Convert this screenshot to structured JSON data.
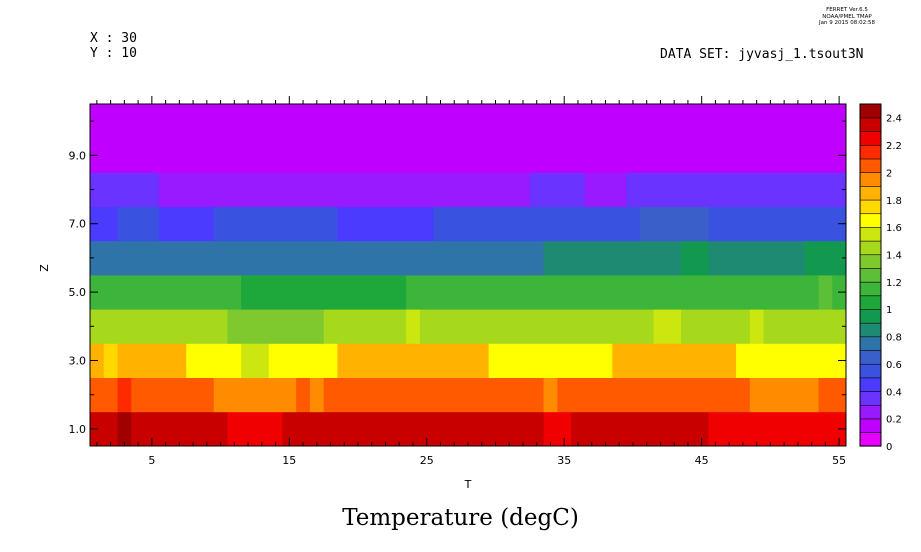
{
  "header": {
    "program": "FERRET  Ver.6.5",
    "org": "NOAA/PMEL TMAP",
    "timestamp": "Jan  9 2015 08:02:58",
    "x_coord": "X : 30",
    "y_coord": "Y : 10",
    "dataset": "DATA SET: jyvasj_1.tsout3N"
  },
  "chart_data": {
    "type": "heatmap",
    "title": "Temperature (degC)",
    "xlabel": "T",
    "ylabel": "Z",
    "xlim": [
      0.5,
      55.5
    ],
    "ylim": [
      0.5,
      10.5
    ],
    "xticks": [
      5,
      15,
      25,
      35,
      45,
      55
    ],
    "xtick_labels": [
      "5",
      "15",
      "25",
      "35",
      "45",
      "55"
    ],
    "yticks": [
      1,
      3,
      5,
      7,
      9
    ],
    "ytick_labels": [
      "1.0",
      "3.0",
      "5.0",
      "7.0",
      "9.0"
    ],
    "colorbar": {
      "levels": [
        0,
        0.1,
        0.2,
        0.3,
        0.4,
        0.5,
        0.6,
        0.7,
        0.8,
        0.9,
        1.0,
        1.1,
        1.2,
        1.3,
        1.4,
        1.5,
        1.6,
        1.7,
        1.8,
        1.9,
        2.0,
        2.1,
        2.2,
        2.3,
        2.4,
        2.5
      ],
      "colors": [
        "#e600ff",
        "#bf00ff",
        "#9a1aff",
        "#6a33ff",
        "#4a3bff",
        "#3a52e0",
        "#3a5fc8",
        "#2f74a8",
        "#1f8a72",
        "#12994f",
        "#1ea83c",
        "#3db43a",
        "#5cbf37",
        "#7fc82e",
        "#a6d81c",
        "#cce60f",
        "#ffff00",
        "#ffd800",
        "#ffb300",
        "#ff8c00",
        "#ff5a00",
        "#ff2a00",
        "#f00000",
        "#c80000",
        "#a00000"
      ],
      "tick_values": [
        0,
        0.2,
        0.4,
        0.6,
        0.8,
        1,
        1.2,
        1.4,
        1.6,
        1.8,
        2,
        2.2,
        2.4
      ],
      "tick_labels": [
        "0",
        "0.2",
        "0.4",
        "0.6",
        "0.8",
        "1",
        "1.2",
        "1.4",
        "1.6",
        "1.8",
        "2",
        "2.2",
        "2.4"
      ]
    },
    "rows": [
      {
        "z": 1,
        "runs": [
          {
            "t0": 0.5,
            "t1": 2.5,
            "c": 23
          },
          {
            "t0": 2.5,
            "t1": 3.5,
            "c": 24
          },
          {
            "t0": 3.5,
            "t1": 10.5,
            "c": 23
          },
          {
            "t0": 10.5,
            "t1": 14.5,
            "c": 22
          },
          {
            "t0": 14.5,
            "t1": 33.5,
            "c": 23
          },
          {
            "t0": 33.5,
            "t1": 35.5,
            "c": 22
          },
          {
            "t0": 35.5,
            "t1": 45.5,
            "c": 23
          },
          {
            "t0": 45.5,
            "t1": 55.5,
            "c": 22
          }
        ]
      },
      {
        "z": 2,
        "runs": [
          {
            "t0": 0.5,
            "t1": 2.5,
            "c": 20
          },
          {
            "t0": 2.5,
            "t1": 3.5,
            "c": 21
          },
          {
            "t0": 3.5,
            "t1": 9.5,
            "c": 20
          },
          {
            "t0": 9.5,
            "t1": 15.5,
            "c": 19
          },
          {
            "t0": 15.5,
            "t1": 16.5,
            "c": 20
          },
          {
            "t0": 16.5,
            "t1": 17.5,
            "c": 19
          },
          {
            "t0": 17.5,
            "t1": 33.5,
            "c": 20
          },
          {
            "t0": 33.5,
            "t1": 34.5,
            "c": 19
          },
          {
            "t0": 34.5,
            "t1": 48.5,
            "c": 20
          },
          {
            "t0": 48.5,
            "t1": 53.5,
            "c": 19
          },
          {
            "t0": 53.5,
            "t1": 55.5,
            "c": 20
          }
        ]
      },
      {
        "z": 3,
        "runs": [
          {
            "t0": 0.5,
            "t1": 1.5,
            "c": 18
          },
          {
            "t0": 1.5,
            "t1": 2.5,
            "c": 17
          },
          {
            "t0": 2.5,
            "t1": 7.5,
            "c": 18
          },
          {
            "t0": 7.5,
            "t1": 11.5,
            "c": 16
          },
          {
            "t0": 11.5,
            "t1": 13.5,
            "c": 15
          },
          {
            "t0": 13.5,
            "t1": 18.5,
            "c": 16
          },
          {
            "t0": 18.5,
            "t1": 29.5,
            "c": 18
          },
          {
            "t0": 29.5,
            "t1": 38.5,
            "c": 16
          },
          {
            "t0": 38.5,
            "t1": 47.5,
            "c": 18
          },
          {
            "t0": 47.5,
            "t1": 55.5,
            "c": 16
          }
        ]
      },
      {
        "z": 4,
        "runs": [
          {
            "t0": 0.5,
            "t1": 10.5,
            "c": 14
          },
          {
            "t0": 10.5,
            "t1": 17.5,
            "c": 13
          },
          {
            "t0": 17.5,
            "t1": 23.5,
            "c": 14
          },
          {
            "t0": 23.5,
            "t1": 24.5,
            "c": 15
          },
          {
            "t0": 24.5,
            "t1": 41.5,
            "c": 14
          },
          {
            "t0": 41.5,
            "t1": 43.5,
            "c": 15
          },
          {
            "t0": 43.5,
            "t1": 48.5,
            "c": 14
          },
          {
            "t0": 48.5,
            "t1": 49.5,
            "c": 15
          },
          {
            "t0": 49.5,
            "t1": 55.5,
            "c": 14
          }
        ]
      },
      {
        "z": 5,
        "runs": [
          {
            "t0": 0.5,
            "t1": 11.5,
            "c": 11
          },
          {
            "t0": 11.5,
            "t1": 23.5,
            "c": 10
          },
          {
            "t0": 23.5,
            "t1": 53.5,
            "c": 11
          },
          {
            "t0": 53.5,
            "t1": 54.5,
            "c": 12
          },
          {
            "t0": 54.5,
            "t1": 55.5,
            "c": 11
          }
        ]
      },
      {
        "z": 6,
        "runs": [
          {
            "t0": 0.5,
            "t1": 33.5,
            "c": 7
          },
          {
            "t0": 33.5,
            "t1": 43.5,
            "c": 8
          },
          {
            "t0": 43.5,
            "t1": 45.5,
            "c": 9
          },
          {
            "t0": 45.5,
            "t1": 52.5,
            "c": 8
          },
          {
            "t0": 52.5,
            "t1": 55.5,
            "c": 9
          }
        ]
      },
      {
        "z": 7,
        "runs": [
          {
            "t0": 0.5,
            "t1": 2.5,
            "c": 4
          },
          {
            "t0": 2.5,
            "t1": 5.5,
            "c": 5
          },
          {
            "t0": 5.5,
            "t1": 9.5,
            "c": 4
          },
          {
            "t0": 9.5,
            "t1": 18.5,
            "c": 5
          },
          {
            "t0": 18.5,
            "t1": 25.5,
            "c": 4
          },
          {
            "t0": 25.5,
            "t1": 40.5,
            "c": 5
          },
          {
            "t0": 40.5,
            "t1": 45.5,
            "c": 6
          },
          {
            "t0": 45.5,
            "t1": 55.5,
            "c": 5
          }
        ]
      },
      {
        "z": 8,
        "runs": [
          {
            "t0": 0.5,
            "t1": 5.5,
            "c": 3
          },
          {
            "t0": 5.5,
            "t1": 32.5,
            "c": 2
          },
          {
            "t0": 32.5,
            "t1": 36.5,
            "c": 3
          },
          {
            "t0": 36.5,
            "t1": 39.5,
            "c": 2
          },
          {
            "t0": 39.5,
            "t1": 55.5,
            "c": 3
          }
        ]
      },
      {
        "z": 9,
        "runs": [
          {
            "t0": 0.5,
            "t1": 55.5,
            "c": 1
          }
        ]
      },
      {
        "z": 10,
        "runs": [
          {
            "t0": 0.5,
            "t1": 55.5,
            "c": 1
          }
        ]
      }
    ]
  }
}
